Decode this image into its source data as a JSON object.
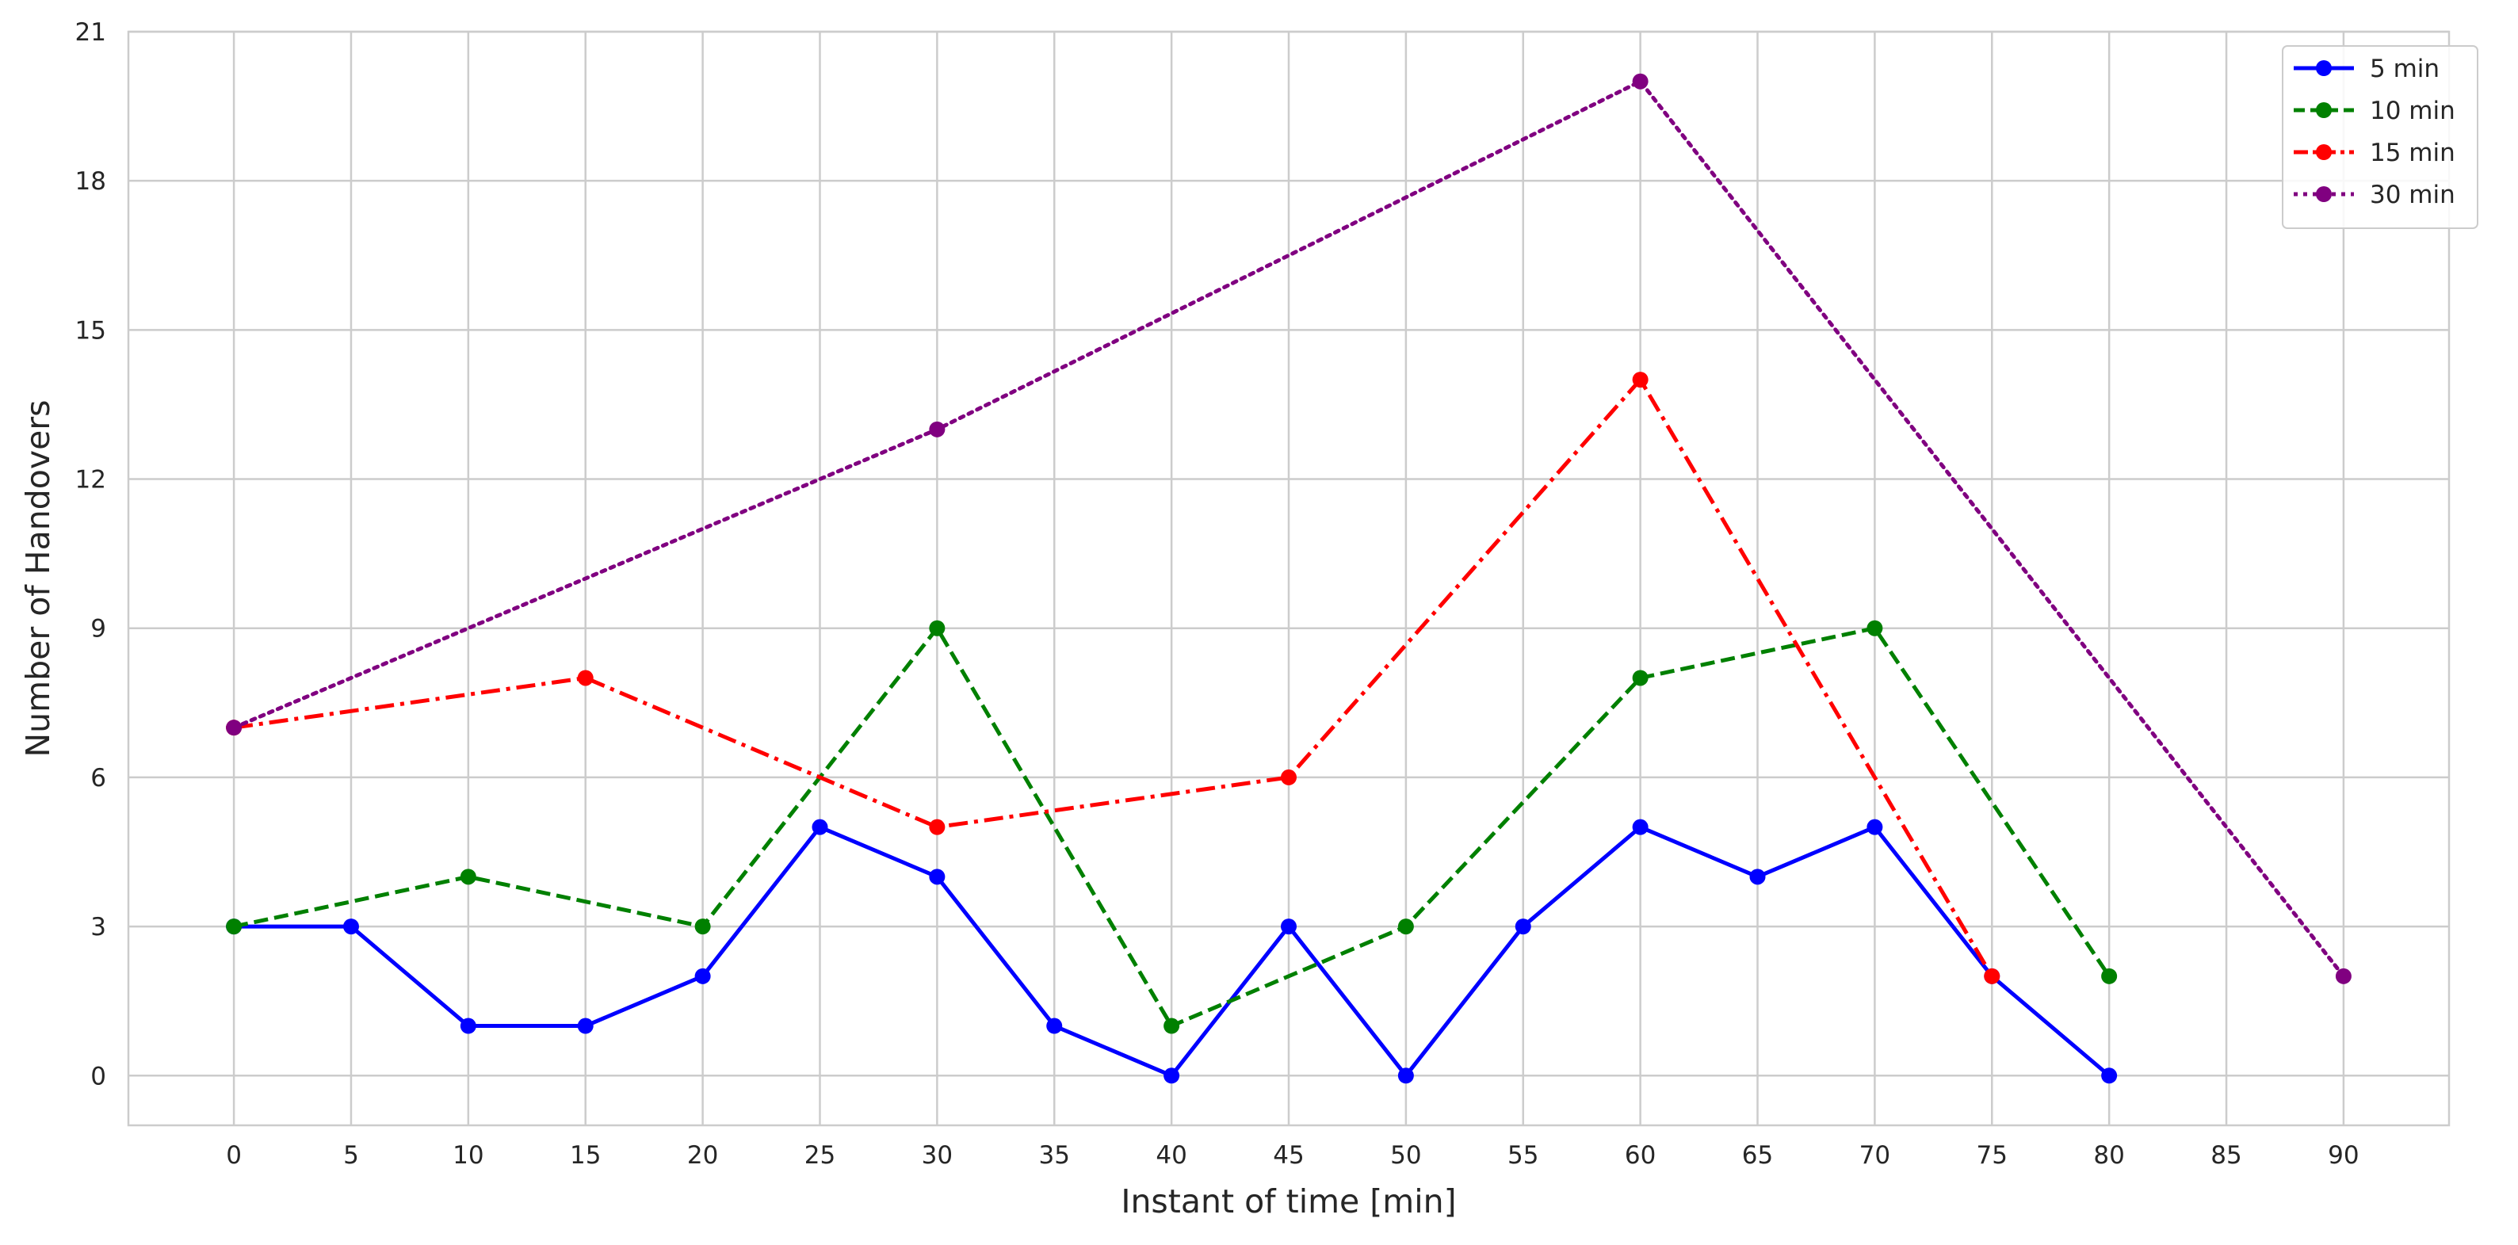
{
  "chart_data": {
    "type": "line",
    "title": "",
    "xlabel": "Instant of time [min]",
    "ylabel": "Number of Handovers",
    "xlim": [
      -4.5,
      94.5
    ],
    "ylim": [
      -1,
      21
    ],
    "xticks": [
      0,
      5,
      10,
      15,
      20,
      25,
      30,
      35,
      40,
      45,
      50,
      55,
      60,
      65,
      70,
      75,
      80,
      85,
      90
    ],
    "yticks": [
      0,
      3,
      6,
      9,
      12,
      15,
      18,
      21
    ],
    "grid": true,
    "legend_position": "top-right",
    "series": [
      {
        "name": "5 min",
        "color": "#0000ff",
        "dash": "solid",
        "x": [
          0,
          5,
          10,
          15,
          20,
          25,
          30,
          35,
          40,
          45,
          50,
          55,
          60,
          65,
          70,
          75,
          80
        ],
        "y": [
          3,
          3,
          1,
          1,
          2,
          5,
          4,
          1,
          0,
          3,
          0,
          3,
          5,
          4,
          5,
          2,
          0
        ]
      },
      {
        "name": "10 min",
        "color": "#008000",
        "dash": "dashed",
        "x": [
          0,
          10,
          20,
          30,
          40,
          50,
          60,
          70,
          80
        ],
        "y": [
          3,
          4,
          3,
          9,
          1,
          3,
          8,
          9,
          2
        ]
      },
      {
        "name": "15 min",
        "color": "#ff0000",
        "dash": "dashdot",
        "x": [
          0,
          15,
          30,
          45,
          60,
          75
        ],
        "y": [
          7,
          8,
          5,
          6,
          14,
          2
        ]
      },
      {
        "name": "30 min",
        "color": "#800080",
        "dash": "dotted",
        "x": [
          0,
          30,
          60,
          90
        ],
        "y": [
          7,
          13,
          20,
          2
        ]
      }
    ]
  }
}
